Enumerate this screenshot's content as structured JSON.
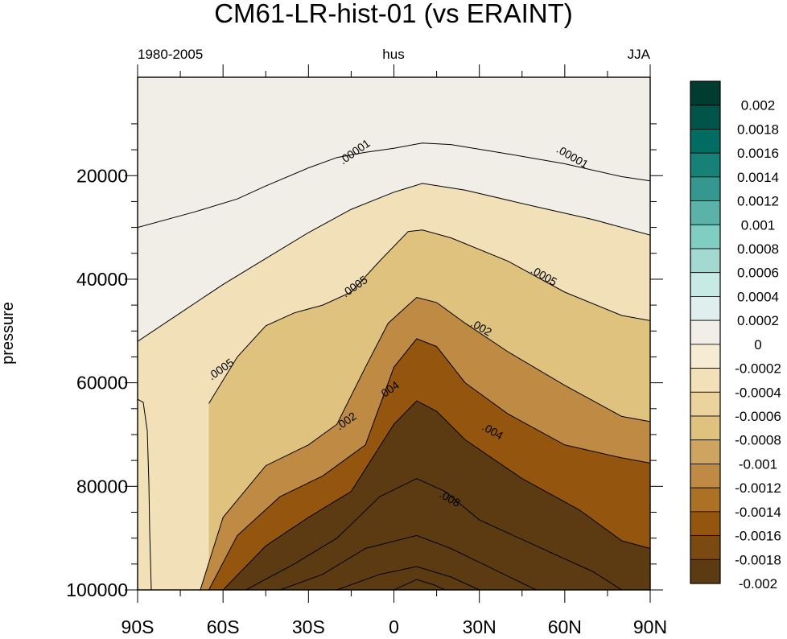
{
  "chart_data": {
    "type": "heatmap",
    "title": "CM61-LR-hist-01  (vs ERAINT)",
    "left_string": "1980-2005",
    "center_string": "hus",
    "right_string": "JJA",
    "ylabel": "pressure",
    "xlabel": "",
    "xlim": [
      -90,
      90
    ],
    "ylim": [
      1000,
      100000
    ],
    "y_reversed": true,
    "x_ticks": [
      {
        "value": -90,
        "label": "90S"
      },
      {
        "value": -60,
        "label": "60S"
      },
      {
        "value": -30,
        "label": "30S"
      },
      {
        "value": 0,
        "label": "0"
      },
      {
        "value": 30,
        "label": "30N"
      },
      {
        "value": 60,
        "label": "60N"
      },
      {
        "value": 90,
        "label": "90N"
      }
    ],
    "y_ticks": [
      {
        "value": 20000,
        "label": "20000"
      },
      {
        "value": 40000,
        "label": "40000"
      },
      {
        "value": 60000,
        "label": "60000"
      },
      {
        "value": 80000,
        "label": "80000"
      },
      {
        "value": 100000,
        "label": "100000"
      }
    ],
    "colorbar": {
      "levels": [
        {
          "label": "0.002",
          "color": "#003c30"
        },
        {
          "label": "0.0018",
          "color": "#01544a"
        },
        {
          "label": "0.0016",
          "color": "#016c62"
        },
        {
          "label": "0.0014",
          "color": "#178177"
        },
        {
          "label": "0.0012",
          "color": "#35978f"
        },
        {
          "label": "0.001",
          "color": "#5ab2a8"
        },
        {
          "label": "0.0008",
          "color": "#80cdc1"
        },
        {
          "label": "0.0006",
          "color": "#a4d9d1"
        },
        {
          "label": "0.0004",
          "color": "#c7eae5"
        },
        {
          "label": "0.0002",
          "color": "#deefed"
        },
        {
          "label": "0",
          "color": "#f1eee8"
        },
        {
          "label": "-0.0002",
          "color": "#f6ebd3"
        },
        {
          "label": "-0.0004",
          "color": "#f2e0b8"
        },
        {
          "label": "-0.0006",
          "color": "#ebd39d"
        },
        {
          "label": "-0.0008",
          "color": "#dfc27d"
        },
        {
          "label": "-0.001",
          "color": "#cfa460"
        },
        {
          "label": "-0.0012",
          "color": "#bf8a43"
        },
        {
          "label": "-0.0014",
          "color": "#ac7125"
        },
        {
          "label": "-0.0016",
          "color": "#94560e"
        },
        {
          "label": "-0.0018",
          "color": "#7a4a10"
        },
        {
          "label": "-0.002",
          "color": "#5c3b13"
        }
      ],
      "bottom_color": "#5c3b13"
    },
    "contours": [
      {
        "level": ".00001",
        "label_at": [
          [
            -13,
            16000
          ],
          [
            62,
            17000
          ]
        ],
        "points": [
          [
            -90,
            30000
          ],
          [
            -70,
            27000
          ],
          [
            -55,
            24500
          ],
          [
            -45,
            22000
          ],
          [
            -30,
            18500
          ],
          [
            -20,
            16500
          ],
          [
            -10,
            15500
          ],
          [
            0,
            14700
          ],
          [
            10,
            13700
          ],
          [
            20,
            14000
          ],
          [
            40,
            15800
          ],
          [
            60,
            17700
          ],
          [
            80,
            20200
          ],
          [
            90,
            21000
          ]
        ]
      },
      {
        "level": "",
        "label_at": [],
        "points": [
          [
            -90,
            52000
          ],
          [
            -75,
            46500
          ],
          [
            -60,
            41000
          ],
          [
            -45,
            36000
          ],
          [
            -30,
            31000
          ],
          [
            -15,
            26500
          ],
          [
            0,
            23200
          ],
          [
            10,
            21500
          ],
          [
            25,
            22800
          ],
          [
            50,
            26000
          ],
          [
            70,
            28500
          ],
          [
            90,
            31500
          ]
        ]
      },
      {
        "level": ".0005",
        "label_at": [
          [
            -60,
            58000
          ],
          [
            -13,
            42000
          ],
          [
            52,
            40000
          ]
        ],
        "points": [
          [
            -65,
            64000
          ],
          [
            -55,
            55000
          ],
          [
            -45,
            49000
          ],
          [
            -35,
            46500
          ],
          [
            -25,
            45000
          ],
          [
            -15,
            42500
          ],
          [
            -5,
            36500
          ],
          [
            5,
            30800
          ],
          [
            10,
            30500
          ],
          [
            20,
            32000
          ],
          [
            40,
            36500
          ],
          [
            60,
            42500
          ],
          [
            80,
            47000
          ],
          [
            90,
            48000
          ]
        ]
      },
      {
        "level": ".002",
        "label_at": [
          [
            -16,
            68000
          ],
          [
            30,
            50000
          ]
        ],
        "points": [
          [
            -68,
            100000
          ],
          [
            -60,
            86000
          ],
          [
            -45,
            76000
          ],
          [
            -30,
            72000
          ],
          [
            -20,
            68000
          ],
          [
            -10,
            57000
          ],
          [
            -2,
            48500
          ],
          [
            8,
            43500
          ],
          [
            15,
            44500
          ],
          [
            25,
            48500
          ],
          [
            40,
            54000
          ],
          [
            60,
            60500
          ],
          [
            80,
            66500
          ],
          [
            90,
            67500
          ]
        ]
      },
      {
        "level": ".004",
        "label_at": [
          [
            -1,
            62000
          ],
          [
            34,
            70000
          ]
        ],
        "points": [
          [
            -65,
            100000
          ],
          [
            -55,
            89500
          ],
          [
            -40,
            82000
          ],
          [
            -25,
            78000
          ],
          [
            -10,
            72000
          ],
          [
            0,
            57000
          ],
          [
            8,
            51500
          ],
          [
            15,
            53000
          ],
          [
            25,
            60000
          ],
          [
            40,
            66000
          ],
          [
            60,
            72000
          ],
          [
            80,
            74500
          ],
          [
            90,
            75500
          ]
        ]
      },
      {
        "level": "",
        "label_at": [],
        "points": [
          [
            -60,
            100000
          ],
          [
            -45,
            91500
          ],
          [
            -30,
            86000
          ],
          [
            -15,
            81000
          ],
          [
            0,
            68000
          ],
          [
            8,
            63500
          ],
          [
            15,
            65500
          ],
          [
            25,
            71000
          ],
          [
            45,
            78500
          ],
          [
            65,
            84500
          ],
          [
            80,
            90500
          ],
          [
            90,
            92000
          ]
        ]
      },
      {
        "level": ".008",
        "label_at": [
          [
            19,
            83000
          ]
        ],
        "points": [
          [
            -52,
            100000
          ],
          [
            -35,
            95000
          ],
          [
            -20,
            90000
          ],
          [
            -5,
            82000
          ],
          [
            8,
            78500
          ],
          [
            18,
            81000
          ],
          [
            30,
            86500
          ],
          [
            50,
            91500
          ],
          [
            70,
            96500
          ],
          [
            80,
            100000
          ]
        ]
      },
      {
        "level": "",
        "label_at": [],
        "points": [
          [
            -40,
            100000
          ],
          [
            -25,
            97000
          ],
          [
            -10,
            92000
          ],
          [
            8,
            89500
          ],
          [
            20,
            92000
          ],
          [
            35,
            96000
          ],
          [
            50,
            100000
          ]
        ]
      },
      {
        "level": "",
        "label_at": [],
        "points": [
          [
            -20,
            100000
          ],
          [
            -5,
            97000
          ],
          [
            8,
            95500
          ],
          [
            20,
            97500
          ],
          [
            30,
            100000
          ]
        ]
      },
      {
        "level": "",
        "label_at": [],
        "points": [
          [
            0,
            100000
          ],
          [
            8,
            98000
          ],
          [
            14,
            99000
          ],
          [
            18,
            100000
          ]
        ]
      }
    ]
  }
}
